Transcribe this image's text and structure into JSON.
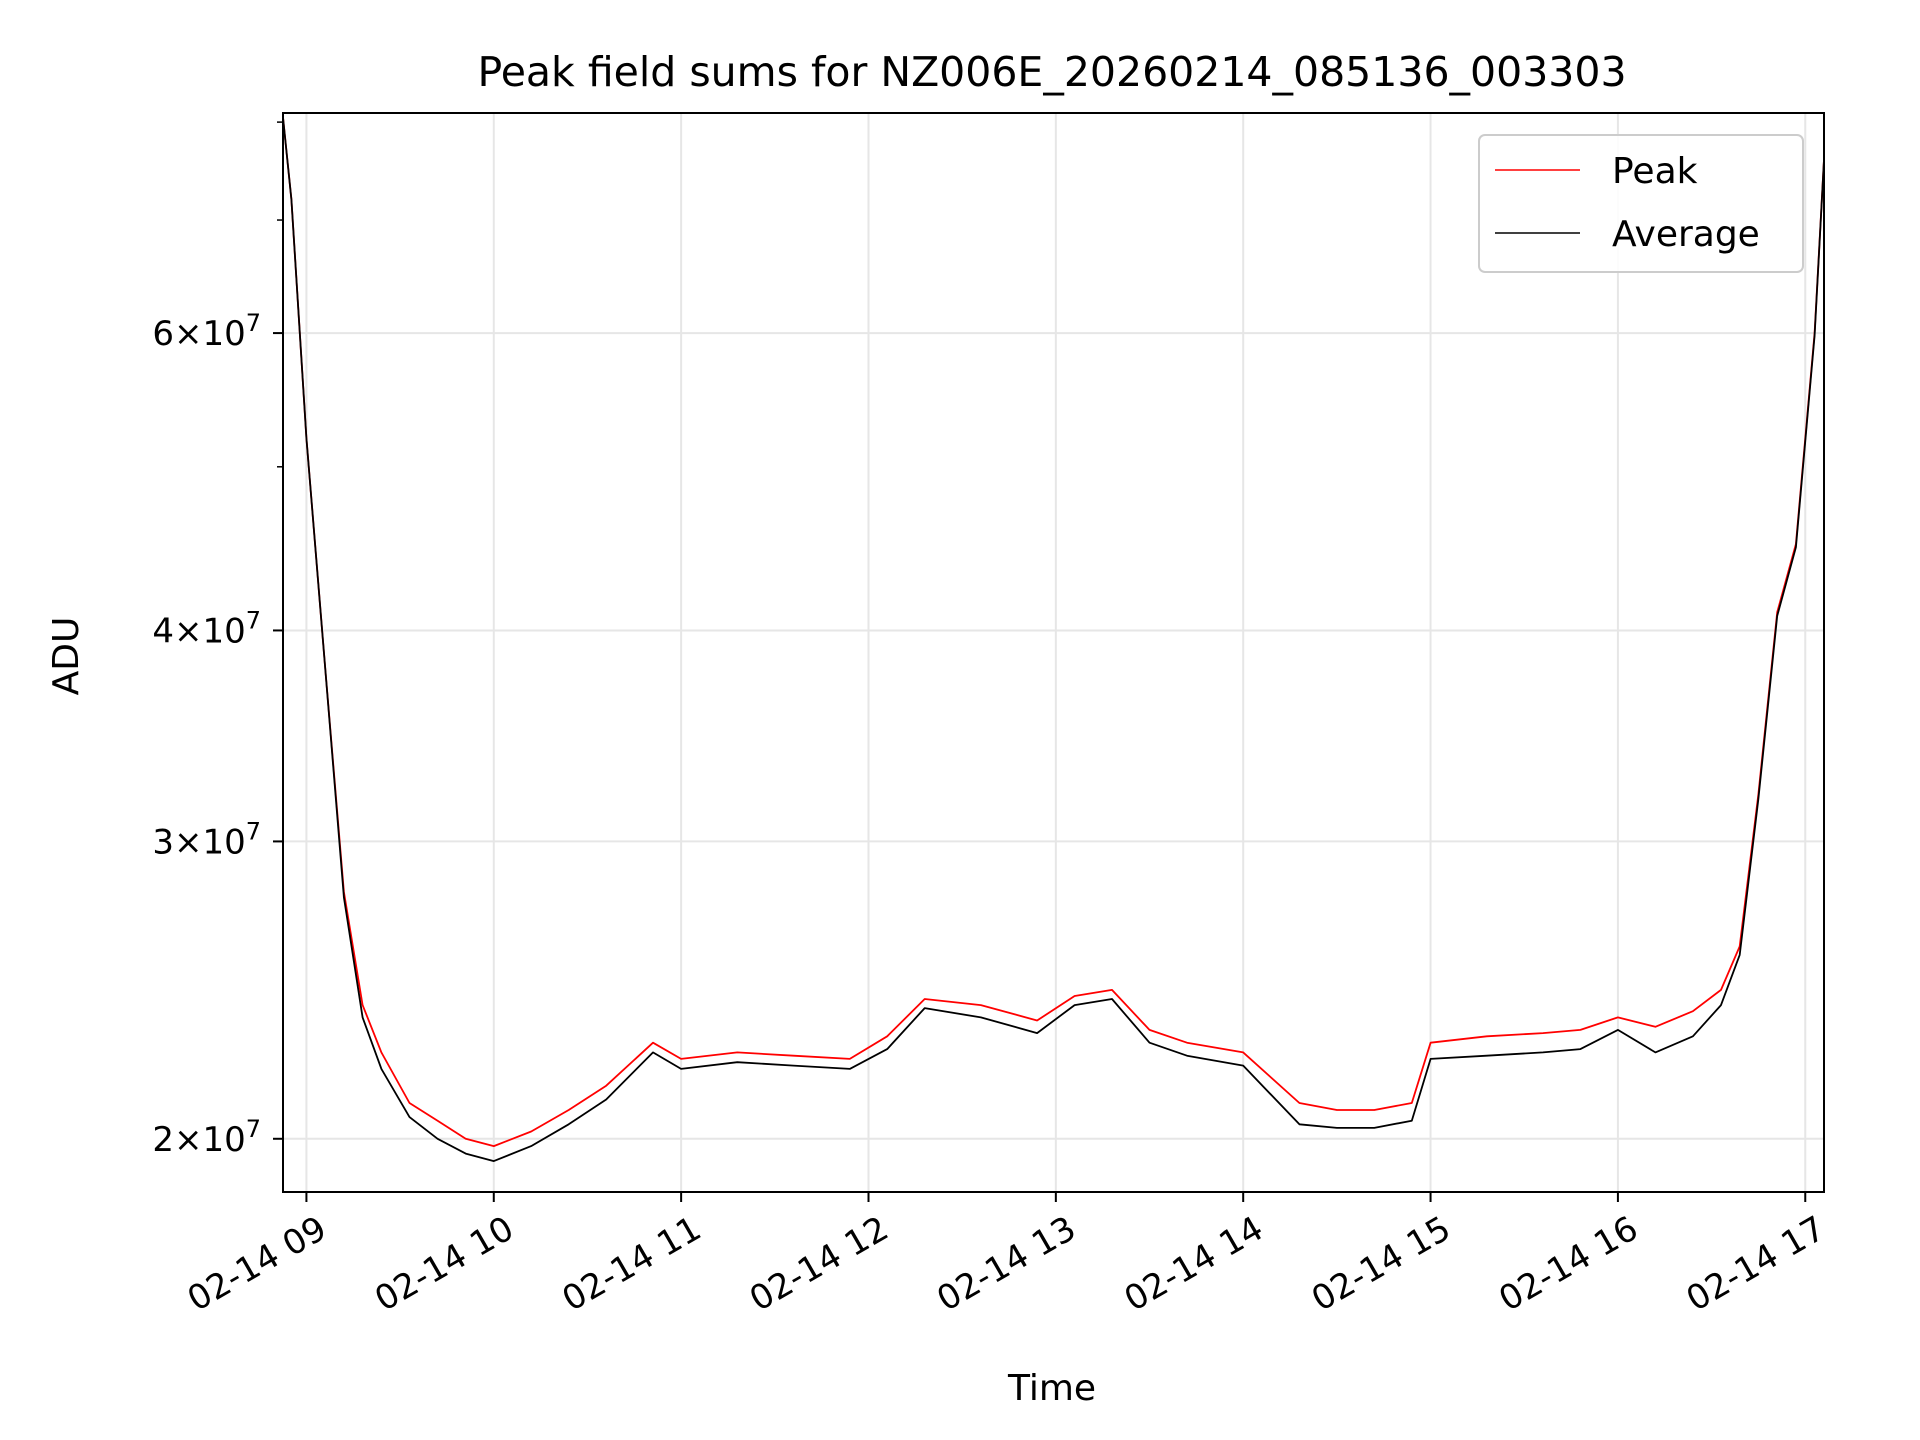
{
  "chart_data": {
    "type": "line",
    "title": "Peak field sums for NZ006E_20260214_085136_003303",
    "xlabel": "Time",
    "ylabel": "ADU",
    "yscale": "log",
    "grid": true,
    "legend_position": "top-right",
    "xlim_hours": [
      8.875,
      17.1
    ],
    "ylim": [
      18600000,
      81000000
    ],
    "x_ticks": [
      {
        "value": 9,
        "label": "02-14 09"
      },
      {
        "value": 10,
        "label": "02-14 10"
      },
      {
        "value": 11,
        "label": "02-14 11"
      },
      {
        "value": 12,
        "label": "02-14 12"
      },
      {
        "value": 13,
        "label": "02-14 13"
      },
      {
        "value": 14,
        "label": "02-14 14"
      },
      {
        "value": 15,
        "label": "02-14 15"
      },
      {
        "value": 16,
        "label": "02-14 16"
      },
      {
        "value": 17,
        "label": "02-14 17"
      }
    ],
    "y_ticks": [
      {
        "value": 20000000,
        "mantissa": "2",
        "exponent": "7"
      },
      {
        "value": 30000000,
        "mantissa": "3",
        "exponent": "7"
      },
      {
        "value": 40000000,
        "mantissa": "4",
        "exponent": "7"
      },
      {
        "value": 60000000,
        "mantissa": "6",
        "exponent": "7"
      }
    ],
    "y_minor_ticks": [
      50000000,
      70000000,
      80000000
    ],
    "series": [
      {
        "name": "Peak",
        "color": "#ff0000",
        "x_hours": [
          8.875,
          8.92,
          9.0,
          9.1,
          9.2,
          9.3,
          9.4,
          9.55,
          9.7,
          9.85,
          10.0,
          10.2,
          10.4,
          10.6,
          10.85,
          11.0,
          11.3,
          11.6,
          11.9,
          12.1,
          12.3,
          12.6,
          12.9,
          13.1,
          13.3,
          13.5,
          13.7,
          14.0,
          14.3,
          14.5,
          14.7,
          14.9,
          15.0,
          15.3,
          15.6,
          15.8,
          16.0,
          16.2,
          16.4,
          16.55,
          16.65,
          16.75,
          16.85,
          16.95,
          17.05,
          17.1
        ],
        "values": [
          80500000,
          72000000,
          52000000,
          38000000,
          28000000,
          24000000,
          22500000,
          21000000,
          20500000,
          20000000,
          19800000,
          20200000,
          20800000,
          21500000,
          22800000,
          22300000,
          22500000,
          22400000,
          22300000,
          23000000,
          24200000,
          24000000,
          23500000,
          24300000,
          24500000,
          23200000,
          22800000,
          22500000,
          21000000,
          20800000,
          20800000,
          21000000,
          22800000,
          23000000,
          23100000,
          23200000,
          23600000,
          23300000,
          23800000,
          24500000,
          26000000,
          32000000,
          41000000,
          45000000,
          60000000,
          76000000
        ]
      },
      {
        "name": "Average",
        "color": "#000000",
        "x_hours": [
          8.875,
          8.92,
          9.0,
          9.1,
          9.2,
          9.3,
          9.4,
          9.55,
          9.7,
          9.85,
          10.0,
          10.2,
          10.4,
          10.6,
          10.85,
          11.0,
          11.3,
          11.6,
          11.9,
          12.1,
          12.3,
          12.6,
          12.9,
          13.1,
          13.3,
          13.5,
          13.7,
          14.0,
          14.3,
          14.5,
          14.7,
          14.9,
          15.0,
          15.3,
          15.6,
          15.8,
          16.0,
          16.2,
          16.4,
          16.55,
          16.65,
          16.75,
          16.85,
          16.95,
          17.05,
          17.1
        ],
        "values": [
          80500000,
          72000000,
          52000000,
          38000000,
          27800000,
          23600000,
          22000000,
          20600000,
          20000000,
          19600000,
          19400000,
          19800000,
          20400000,
          21100000,
          22500000,
          22000000,
          22200000,
          22100000,
          22000000,
          22600000,
          23900000,
          23600000,
          23100000,
          24000000,
          24200000,
          22800000,
          22400000,
          22100000,
          20400000,
          20300000,
          20300000,
          20500000,
          22300000,
          22400000,
          22500000,
          22600000,
          23200000,
          22500000,
          23000000,
          24000000,
          25700000,
          31800000,
          40800000,
          44800000,
          59800000,
          76000000
        ]
      }
    ]
  }
}
